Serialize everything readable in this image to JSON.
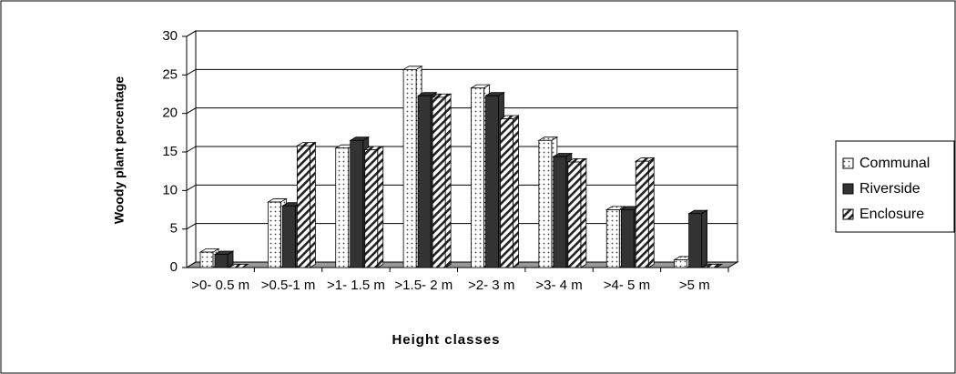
{
  "chart_data": {
    "type": "bar3d",
    "y_label": "Woody plant percentage",
    "x_label": "Height classes",
    "categories": [
      ">0- 0.5 m",
      ">0.5-1 m",
      ">1- 1.5 m",
      ">1.5- 2 m",
      ">2- 3 m",
      ">3- 4 m",
      ">4- 5 m",
      ">5 m"
    ],
    "series": [
      {
        "name": "Communal",
        "color": "#ffffff",
        "pattern": "dots",
        "values": [
          2,
          8.5,
          15.5,
          25.7,
          23.3,
          16.5,
          7.5,
          1
        ]
      },
      {
        "name": "Riverside",
        "color": "#333333",
        "pattern": "solid",
        "values": [
          1.7,
          8,
          16.5,
          22.3,
          22.3,
          14.4,
          7.5,
          7
        ]
      },
      {
        "name": "Enclosure",
        "color": "#ffffff",
        "pattern": "hatch",
        "values": [
          0,
          15.8,
          15.3,
          22.1,
          19.3,
          13.7,
          13.8,
          0
        ]
      }
    ],
    "ylim": [
      0,
      30
    ],
    "yticks": [
      0,
      5,
      10,
      15,
      20,
      25,
      30
    ],
    "grid": true,
    "legend": "right"
  }
}
